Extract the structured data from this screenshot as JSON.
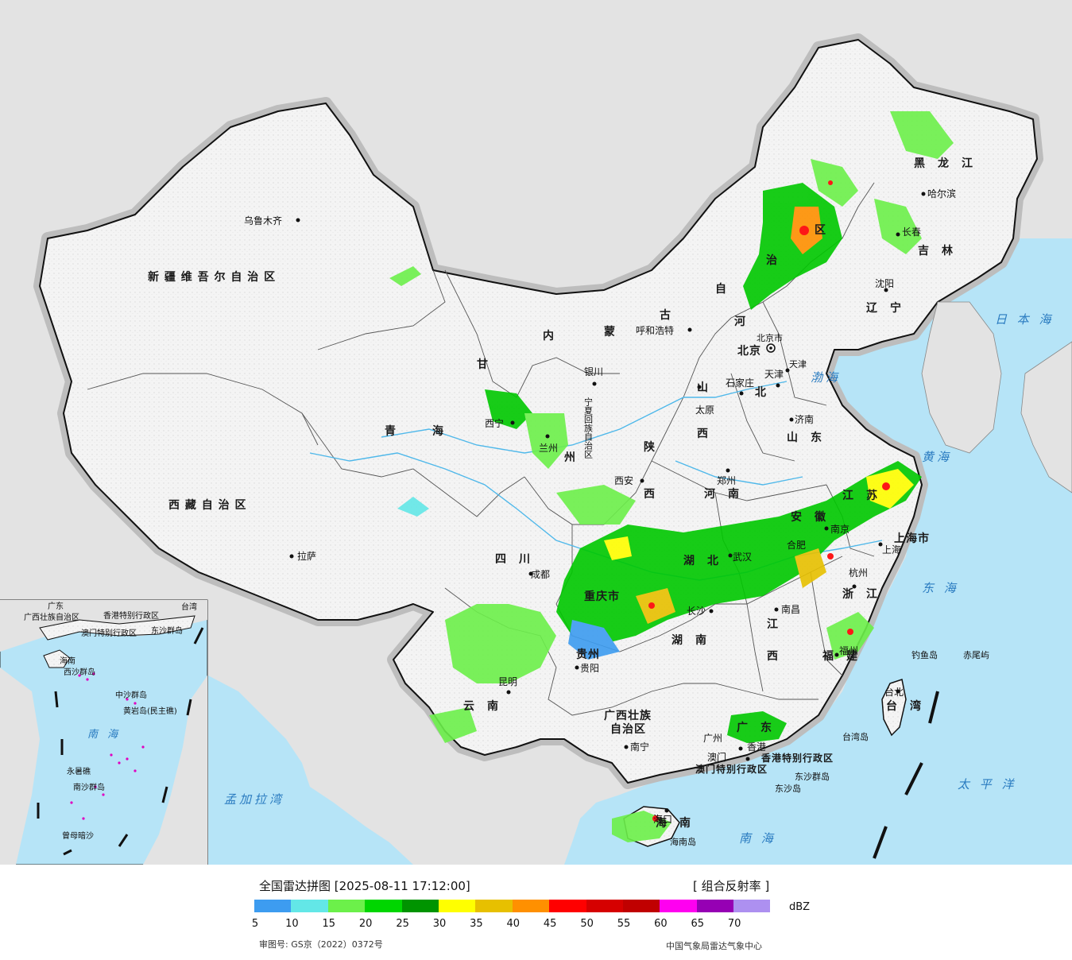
{
  "legend": {
    "title": "全国雷达拼图 [2025-08-11 17:12:00]",
    "product": "[ 组合反射率 ]",
    "unit": "dBZ",
    "colors": [
      "#3d9cf0",
      "#63e7e7",
      "#6cf04a",
      "#00d600",
      "#009400",
      "#ffff00",
      "#e7c000",
      "#ff9000",
      "#ff0000",
      "#d60000",
      "#c00000",
      "#ff00f0",
      "#9600b4",
      "#ad90f0"
    ],
    "ticks": [
      "5",
      "10",
      "15",
      "20",
      "25",
      "30",
      "35",
      "40",
      "45",
      "50",
      "55",
      "60",
      "65",
      "70"
    ],
    "approval": "审图号: GS京（2022）0372号",
    "credit": "中国气象局雷达气象中心"
  },
  "provinces": {
    "xinjiang": "新 疆 维 吾 尔 自 治 区",
    "xizang": "西 藏 自 治 区",
    "qinghai": "青　　　海",
    "gansu": "甘",
    "neimenggu_1": "内",
    "neimenggu_2": "蒙",
    "neimenggu_3": "古",
    "neimenggu_4": "自",
    "neimenggu_5": "治",
    "neimenggu_6": "区",
    "heilongjiang": "黑　龙　江",
    "jilin": "吉　林",
    "liaoning": "辽　宁",
    "hebei_1": "河",
    "hebei_2": "北",
    "shanxi_1": "山",
    "shanxi_2": "西",
    "shandong": "山　东",
    "henan": "河　南",
    "shaanxi_1": "陕",
    "shaanxi_2": "西",
    "ningxia": "宁夏回族自治区",
    "sichuan": "四　川",
    "chongqing": "重庆市",
    "hubei": "湖　北",
    "hunan": "湖　南",
    "anhui": "安　徽",
    "jiangsu": "江　苏",
    "shanghai": "上海市",
    "zhejiang": "浙　江",
    "jiangxi_1": "江",
    "jiangxi_2": "西",
    "fujian": "福　建",
    "guizhou": "贵州",
    "yunnan": "云　南",
    "guangxi_1": "广西壮族",
    "guangxi_2": "自治区",
    "guangdong": "广　东",
    "hainan": "海　南",
    "taiwan": "台　湾",
    "hk": "香港特别行政区",
    "macau": "澳门特别行政区",
    "beijing": "北京",
    "tianjin": "天津",
    "gansu_zhou": "州"
  },
  "cities": {
    "urumqi": "乌鲁木齐",
    "lhasa": "拉萨",
    "xining": "西宁",
    "lanzhou": "兰州",
    "yinchuan": "银川",
    "hohhot": "呼和浩特",
    "beijing": "北京市",
    "tianjin": "天津",
    "shijiazhuang": "石家庄",
    "taiyuan": "太原",
    "jinan": "济南",
    "zhengzhou": "郑州",
    "xian": "西安",
    "chengdu": "成都",
    "wuhan": "武汉",
    "nanjing": "南京",
    "hefei": "合肥",
    "shanghai": "上海",
    "hangzhou": "杭州",
    "nanchang": "南昌",
    "changsha": "长沙",
    "fuzhou": "福州",
    "guiyang": "贵阳",
    "kunming": "昆明",
    "nanning": "南宁",
    "guangzhou": "广州",
    "hongkong": "香港",
    "macau": "澳门",
    "haikou": "海口",
    "taipei": "台北",
    "shenyang": "沈阳",
    "changchun": "长春",
    "harbin": "哈尔滨"
  },
  "seas": {
    "bohai": "渤海",
    "yellow": "黄海",
    "east": "东 海",
    "south": "南 海",
    "japan": "日 本 海",
    "pacific": "太 平 洋",
    "bengal": "孟加拉湾"
  },
  "islands": {
    "diaoyu": "钓鱼岛",
    "chiwei": "赤尾屿",
    "taiwan_island": "台湾岛",
    "hainan_island": "海南岛",
    "dongsha": "东沙群岛",
    "dongsha2": "东沙岛"
  },
  "inset": {
    "gd": "广东",
    "gx": "广西壮族自治区",
    "hk": "香港特别行政区",
    "mo": "澳门特别行政区",
    "hai": "海南",
    "xisha": "西沙群岛",
    "dongsha": "东沙群岛",
    "zhongsha": "中沙群岛",
    "huangyan": "黄岩岛(民主礁)",
    "nansha": "南沙群岛",
    "yongshu": "永暑礁",
    "zengmu": "曾母暗沙",
    "south_sea": "南 海",
    "taiwan": "台湾"
  }
}
